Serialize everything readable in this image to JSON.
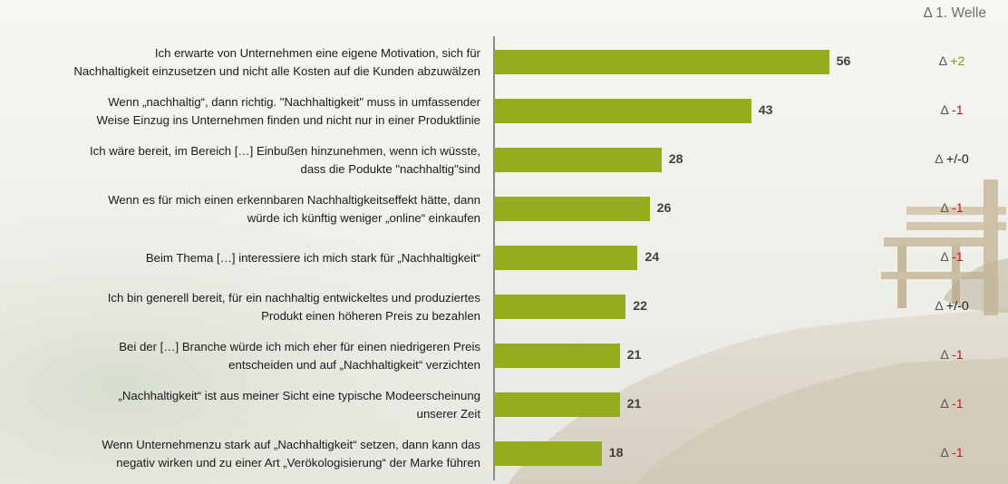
{
  "header": {
    "delta_title": "Δ 1. Welle"
  },
  "colors": {
    "bar": "#95ac1c",
    "delta_positive": "#7f9a1a",
    "delta_negative": "#c0181e",
    "delta_neutral": "#1a1a1a"
  },
  "chart_data": {
    "type": "bar",
    "orientation": "horizontal",
    "title": "",
    "xlabel": "",
    "ylabel": "",
    "categories": [
      "Ich erwarte von Unternehmen eine eigene Motivation, sich für Nachhaltigkeit einzusetzen und nicht alle Kosten auf die Kunden abzuwälzen",
      "Wenn „nachhaltig“, dann richtig. \"Nachhaltigkeit\" muss in umfassender Weise Einzug ins Unternehmen finden und nicht nur in einer Produktlinie",
      "Ich wäre bereit, im Bereich […] Einbußen hinzunehmen, wenn ich wüsste, dass die Podukte \"nachhaltig\"sind",
      "Wenn es für mich einen erkennbaren Nachhaltigkeitseffekt hätte, dann würde ich künftig weniger „online“ einkaufen",
      "Beim Thema […] interessiere ich mich stark für „Nachhaltigkeit“",
      "Ich bin generell bereit, für ein nachhaltig entwickeltes und produziertes Produkt einen höheren Preis zu bezahlen",
      "Bei der […] Branche würde ich mich eher für einen niedrigeren Preis entscheiden und auf „Nachhaltigkeit“ verzichten",
      "„Nachhaltigkeit“ ist aus meiner Sicht eine typische Modeerscheinung unserer Zeit",
      "Wenn Unternehmenzu stark auf „Nachhaltigkeit“ setzen, dann kann das negativ wirken und zu einer Art „Verökologisierung“ der Marke führen"
    ],
    "label_lines": [
      [
        "Ich erwarte von Unternehmen eine eigene Motivation, sich für",
        "Nachhaltigkeit einzusetzen und nicht alle Kosten auf die Kunden abzuwälzen"
      ],
      [
        "Wenn „nachhaltig“, dann richtig. \"Nachhaltigkeit\" muss in umfassender",
        "Weise Einzug ins Unternehmen finden und nicht nur in einer Produktlinie"
      ],
      [
        "Ich wäre bereit, im Bereich […] Einbußen hinzunehmen, wenn ich wüsste,",
        "dass die Podukte \"nachhaltig\"sind"
      ],
      [
        "Wenn es für mich einen erkennbaren Nachhaltigkeitseffekt hätte, dann",
        "würde ich künftig weniger „online“ einkaufen"
      ],
      [
        "Beim Thema […] interessiere ich mich stark für „Nachhaltigkeit“"
      ],
      [
        "Ich bin generell bereit, für ein nachhaltig entwickeltes und produziertes",
        "Produkt einen höheren Preis zu bezahlen"
      ],
      [
        "Bei der […] Branche würde ich mich eher für einen niedrigeren Preis",
        "entscheiden und auf „Nachhaltigkeit“ verzichten"
      ],
      [
        "„Nachhaltigkeit“ ist aus meiner Sicht eine typische Modeerscheinung",
        "unserer Zeit"
      ],
      [
        "Wenn Unternehmenzu stark auf „Nachhaltigkeit“ setzen, dann kann das",
        "negativ wirken und zu einer Art „Verökologisierung“ der Marke führen"
      ]
    ],
    "values": [
      56,
      43,
      28,
      26,
      24,
      22,
      21,
      21,
      18
    ],
    "deltas": [
      "+2",
      "-1",
      "+/-0",
      "-1",
      "-1",
      "+/-0",
      "-1",
      "-1",
      "-1"
    ],
    "delta_symbol": "Δ",
    "xlim": [
      0,
      60
    ],
    "grid": false,
    "legend": "none"
  }
}
